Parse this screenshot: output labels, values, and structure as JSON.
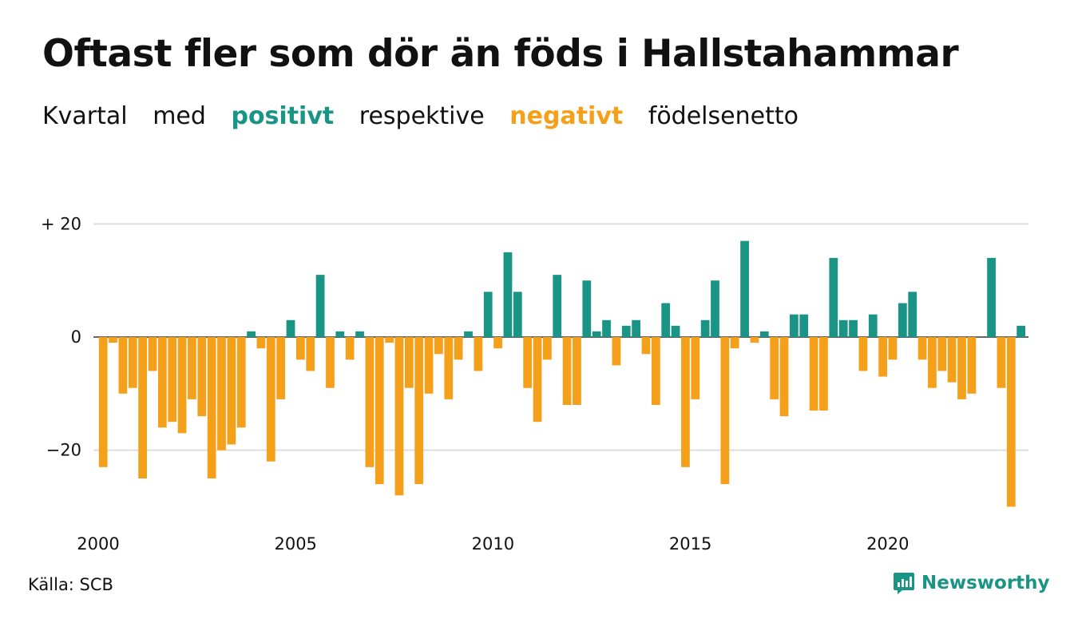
{
  "header": {
    "title": "Oftast fler som dör än föds i Hallstahammar",
    "subtitle": {
      "part1": "Kvartal",
      "part2": "med",
      "positive": "positivt",
      "part3": "respektive",
      "negative": "negativt",
      "part4": "födelsenetto"
    }
  },
  "colors": {
    "positive": "#1a9485",
    "negative": "#f5a01a",
    "grid": "#dddddd",
    "axis": "#333333"
  },
  "footer": {
    "source": "Källa: SCB",
    "brand": "Newsworthy"
  },
  "chart_data": {
    "type": "bar",
    "x_tick_labels": [
      "2000",
      "2005",
      "2010",
      "2015",
      "2020"
    ],
    "y_tick_labels": [
      "+ 20",
      "0",
      "−20"
    ],
    "y_ticks": [
      20,
      0,
      -20
    ],
    "ylim": [
      -30,
      20
    ],
    "grid": true,
    "start": {
      "year": 2000,
      "quarter": 1
    },
    "values": [
      -23,
      -1,
      -10,
      -9,
      -25,
      -6,
      -16,
      -15,
      -17,
      -11,
      -14,
      -25,
      -20,
      -19,
      -16,
      1,
      -2,
      -22,
      -11,
      3,
      -4,
      -6,
      11,
      -9,
      1,
      -4,
      1,
      -23,
      -26,
      -1,
      -28,
      -9,
      -26,
      -10,
      -3,
      -11,
      -4,
      1,
      -6,
      8,
      -2,
      15,
      8,
      -9,
      -15,
      -4,
      11,
      -12,
      -12,
      10,
      1,
      3,
      -5,
      2,
      3,
      -3,
      -12,
      6,
      2,
      -23,
      -11,
      3,
      10,
      -26,
      -2,
      17,
      -1,
      1,
      -11,
      -14,
      4,
      4,
      -13,
      -13,
      14,
      3,
      3,
      -6,
      4,
      -7,
      -4,
      6,
      8,
      -4,
      -9,
      -6,
      -8,
      -11,
      -10,
      0,
      14,
      -9,
      -30,
      2
    ]
  }
}
